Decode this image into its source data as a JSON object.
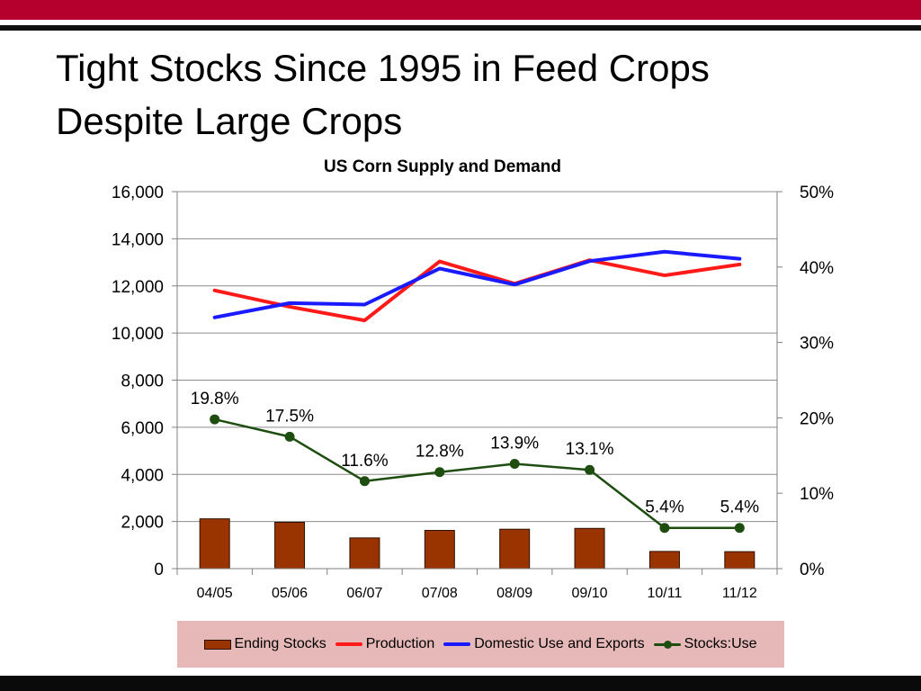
{
  "slide": {
    "title_line1": "Tight Stocks Since 1995 in Feed Crops",
    "title_line2": "Despite Large Crops"
  },
  "colors": {
    "accent_bar": "#b5002e",
    "ending_stocks": "#993300",
    "production": "#ff1a1a",
    "domestic_use": "#1a1aff",
    "stocks_use": "#1e4d10",
    "legend_bg": "#e6b9b8"
  },
  "chart_data": {
    "type": "bar",
    "title": "US Corn Supply and Demand",
    "categories": [
      "04/05",
      "05/06",
      "06/07",
      "07/08",
      "08/09",
      "09/10",
      "10/11",
      "11/12"
    ],
    "y_left": {
      "min": 0,
      "max": 16000,
      "ticks": [
        "0",
        "2,000",
        "4,000",
        "6,000",
        "8,000",
        "10,000",
        "12,000",
        "14,000",
        "16,000"
      ]
    },
    "y_right": {
      "min": 0,
      "max": 50,
      "ticks": [
        "0%",
        "10%",
        "20%",
        "30%",
        "40%",
        "50%"
      ]
    },
    "grid": true,
    "legend_position": "bottom",
    "series": [
      {
        "name": "Ending Stocks",
        "type": "bar",
        "axis": "left",
        "values": [
          2114,
          1967,
          1304,
          1624,
          1673,
          1708,
          730,
          720
        ]
      },
      {
        "name": "Production",
        "type": "line",
        "axis": "left",
        "values": [
          11807,
          11114,
          10535,
          13038,
          12092,
          13092,
          12447,
          12910
        ]
      },
      {
        "name": "Domestic Use and Exports",
        "type": "line",
        "axis": "left",
        "values": [
          10662,
          11270,
          11208,
          12737,
          12056,
          13053,
          13450,
          13150
        ]
      },
      {
        "name": "Stocks:Use",
        "type": "line",
        "axis": "right",
        "values": [
          19.8,
          17.5,
          11.6,
          12.8,
          13.9,
          13.1,
          5.4,
          5.4
        ],
        "labels": [
          "19.8%",
          "17.5%",
          "11.6%",
          "12.8%",
          "13.9%",
          "13.1%",
          "5.4%",
          "5.4%"
        ]
      }
    ]
  }
}
